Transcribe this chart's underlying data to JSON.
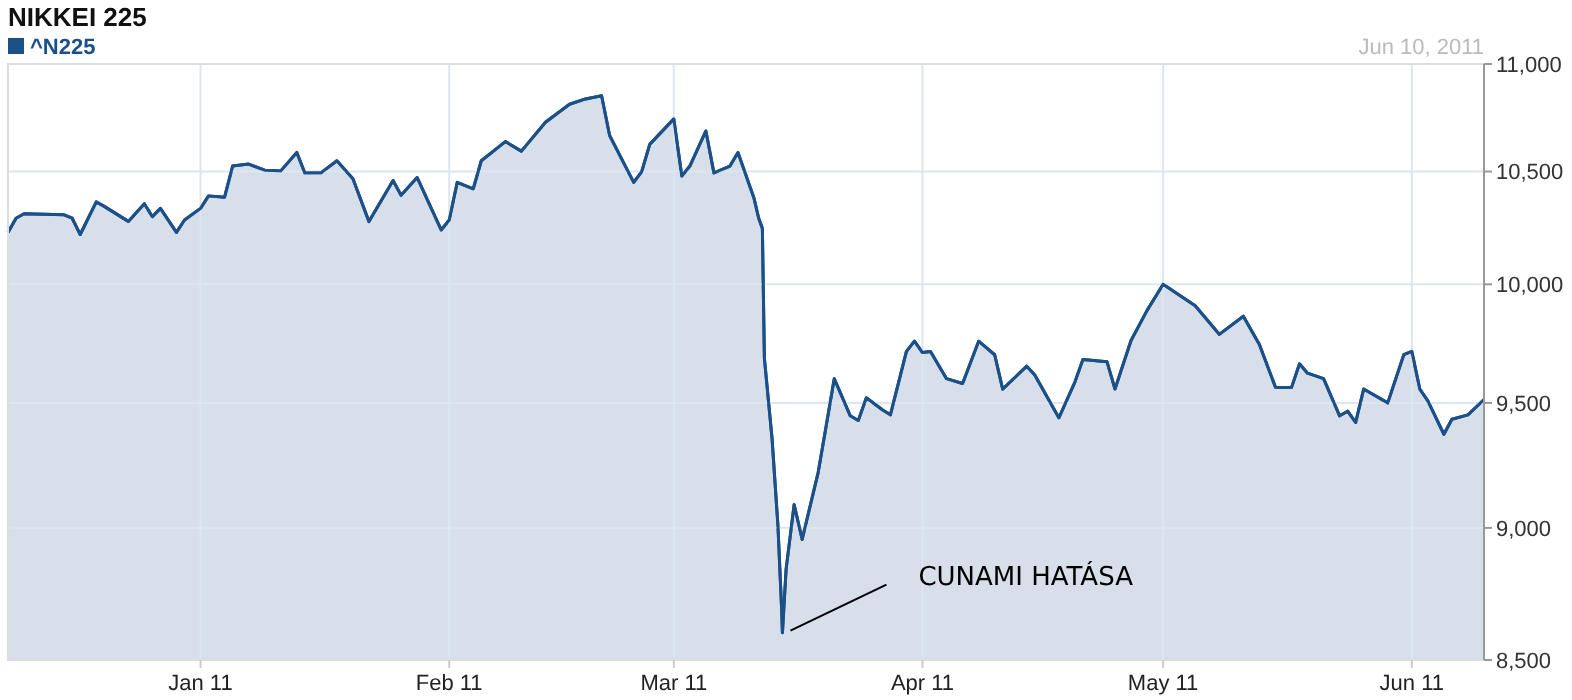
{
  "chart_data": {
    "type": "area",
    "title": "NIKKEI 225",
    "log": true,
    "grid": true,
    "legend": "top left",
    "line_style": "solid",
    "annotations": [
      "Jun 10, 2011",
      {
        "text": "CUNAMI HATÁSA",
        "x": "2011-03-14T13:00",
        "y": 8601
      }
    ],
    "xlim": [
      "2010-12-08",
      "2011-06-10"
    ],
    "xticks": [
      {
        "value": "2011-01-01",
        "label": "Jan 11"
      },
      {
        "value": "2011-02-01",
        "label": "Feb 11"
      },
      {
        "value": "2011-03-01",
        "label": "Mar 11"
      },
      {
        "value": "2011-04-01",
        "label": "Apr 11"
      },
      {
        "value": "2011-05-01",
        "label": "May 11"
      },
      {
        "value": "2011-06-01",
        "label": "Jun 11"
      }
    ],
    "ylim": [
      8500,
      11000
    ],
    "yticks": [
      {
        "value": 8500,
        "label": "8,500"
      },
      {
        "value": 9000,
        "label": "9,000"
      },
      {
        "value": 9500,
        "label": "9,500"
      },
      {
        "value": 10000,
        "label": "10,000"
      },
      {
        "value": 10500,
        "label": "10,500"
      },
      {
        "value": 11000,
        "label": "11,000"
      }
    ],
    "series": [
      {
        "name": "^N225",
        "color": "#1c5088",
        "x": [
          "2010-12-08",
          "2010-12-09",
          "2010-12-10",
          "2010-12-15",
          "2010-12-16",
          "2010-12-17",
          "2010-12-19",
          "2010-12-20",
          "2010-12-23",
          "2010-12-25",
          "2010-12-26",
          "2010-12-27",
          "2010-12-29",
          "2010-12-30",
          "2011-01-01",
          "2011-01-02",
          "2011-01-04",
          "2011-01-05",
          "2011-01-07",
          "2011-01-09",
          "2011-01-11",
          "2011-01-13",
          "2011-01-14",
          "2011-01-16",
          "2011-01-18",
          "2011-01-20",
          "2011-01-22",
          "2011-01-25",
          "2011-01-26",
          "2011-01-28",
          "2011-01-31",
          "2011-02-01",
          "2011-02-02",
          "2011-02-04",
          "2011-02-05",
          "2011-02-08",
          "2011-02-10",
          "2011-02-13",
          "2011-02-16",
          "2011-02-18",
          "2011-02-20",
          "2011-02-21",
          "2011-02-24",
          "2011-02-25",
          "2011-02-26",
          "2011-03-01",
          "2011-03-02",
          "2011-03-03",
          "2011-03-05",
          "2011-03-06",
          "2011-03-08",
          "2011-03-09",
          "2011-03-11",
          "2011-03-11T14:00",
          "2011-03-12T01:00",
          "2011-03-12T07:00",
          "2011-03-13T06:00",
          "2011-03-13T23:30",
          "2011-03-14T11:00",
          "2011-03-14T13:00",
          "2011-03-15",
          "2011-03-16",
          "2011-03-17",
          "2011-03-19",
          "2011-03-20",
          "2011-03-21",
          "2011-03-23",
          "2011-03-24",
          "2011-03-25",
          "2011-03-27",
          "2011-03-28",
          "2011-03-30",
          "2011-03-31",
          "2011-04-01",
          "2011-04-02",
          "2011-04-04",
          "2011-04-06",
          "2011-04-08",
          "2011-04-10",
          "2011-04-11",
          "2011-04-14",
          "2011-04-15",
          "2011-04-18",
          "2011-04-20",
          "2011-04-21",
          "2011-04-24",
          "2011-04-25",
          "2011-04-27",
          "2011-04-29",
          "2011-05-01",
          "2011-05-05",
          "2011-05-08",
          "2011-05-11",
          "2011-05-13",
          "2011-05-15",
          "2011-05-17",
          "2011-05-18",
          "2011-05-19",
          "2011-05-21",
          "2011-05-23",
          "2011-05-24",
          "2011-05-25",
          "2011-05-26",
          "2011-05-29",
          "2011-05-31",
          "2011-06-01",
          "2011-06-02",
          "2011-06-03",
          "2011-06-05",
          "2011-06-06",
          "2011-06-08",
          "2011-06-10"
        ],
        "values": [
          10227,
          10290,
          10310,
          10305,
          10290,
          10218,
          10363,
          10343,
          10276,
          10355,
          10297,
          10334,
          10227,
          10282,
          10334,
          10390,
          10384,
          10525,
          10534,
          10506,
          10503,
          10587,
          10494,
          10494,
          10549,
          10467,
          10275,
          10459,
          10393,
          10473,
          10238,
          10282,
          10451,
          10422,
          10549,
          10637,
          10593,
          10726,
          10810,
          10835,
          10850,
          10665,
          10451,
          10500,
          10624,
          10742,
          10480,
          10525,
          10686,
          10494,
          10525,
          10587,
          10379,
          10290,
          10245,
          9686,
          9353,
          9010,
          8677,
          8601,
          8841,
          9091,
          8955,
          9219,
          9407,
          9600,
          9447,
          9428,
          9521,
          9472,
          9451,
          9714,
          9757,
          9709,
          9714,
          9600,
          9580,
          9757,
          9700,
          9557,
          9652,
          9615,
          9439,
          9586,
          9680,
          9671,
          9557,
          9760,
          9888,
          10000,
          9908,
          9786,
          9863,
          9743,
          9565,
          9563,
          9662,
          9623,
          9600,
          9447,
          9466,
          9420,
          9557,
          9500,
          9700,
          9714,
          9557,
          9508,
          9372,
          9433,
          9451,
          9514
        ]
      }
    ]
  }
}
